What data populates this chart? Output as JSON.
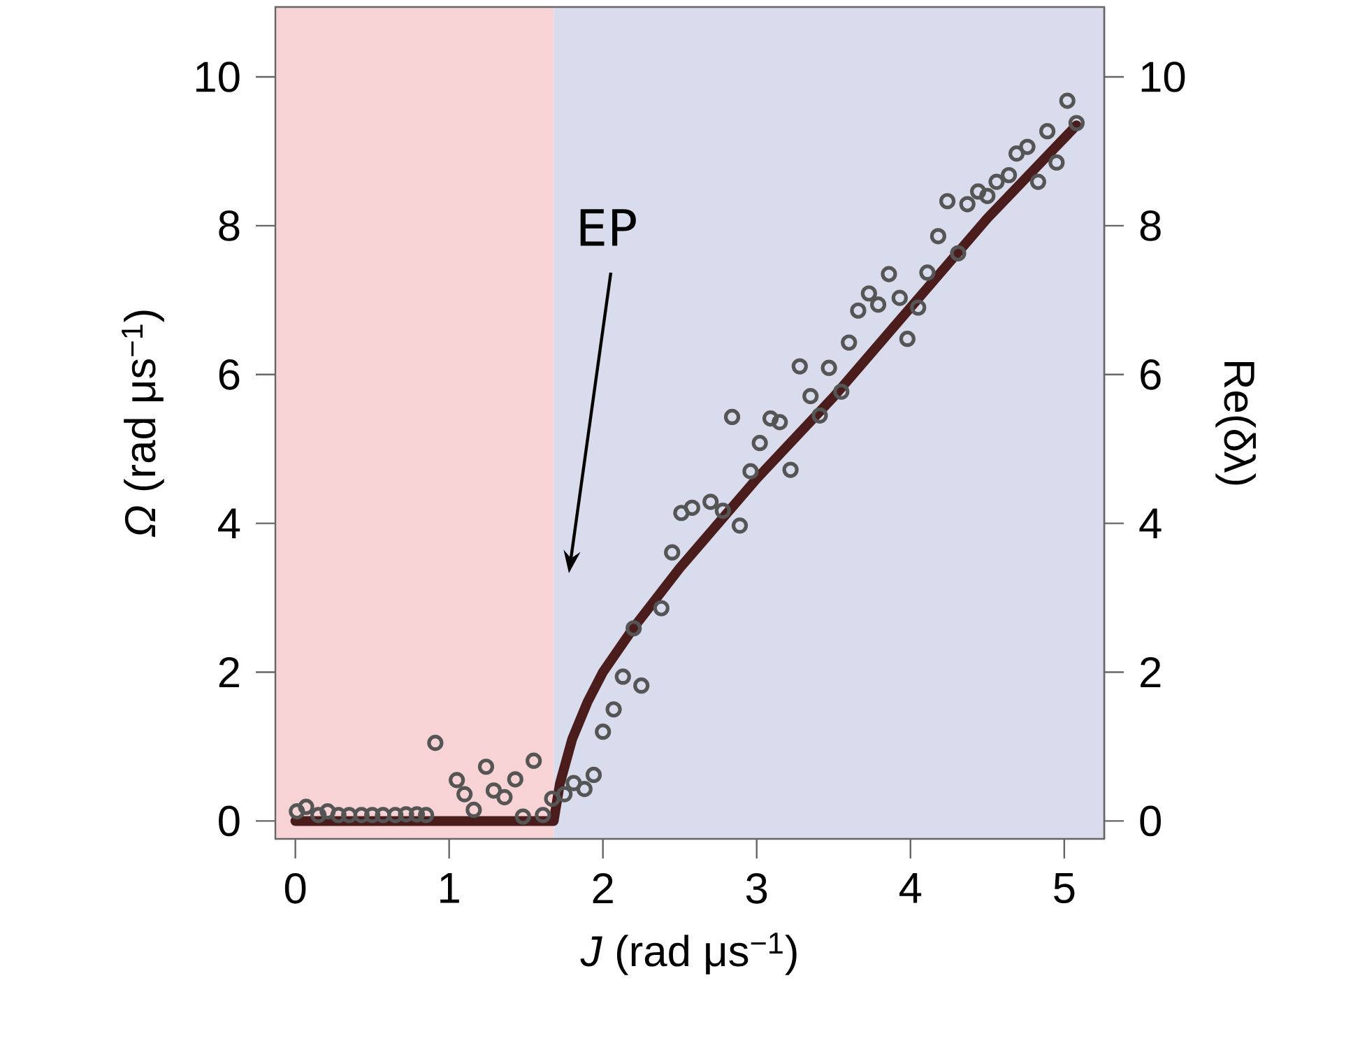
{
  "chart_data": {
    "type": "scatter",
    "xlabel": "*J* (rad μs$^{−1}$)",
    "ylabel": "*Ω* (rad μs$^{−1}$)",
    "y2label": "Re(δλ)",
    "xlim": [
      -0.13,
      5.26
    ],
    "ylim": [
      -0.24,
      10.94
    ],
    "y2lim": [
      -0.24,
      10.94
    ],
    "xticks": [
      0,
      1,
      2,
      3,
      4,
      5
    ],
    "yticks": [
      0,
      2,
      4,
      6,
      8,
      10
    ],
    "y2ticks": [
      0,
      2,
      4,
      6,
      8,
      10
    ],
    "bands": [
      {
        "axis": "x",
        "from": -0.13,
        "to": 1.68,
        "color": "#f8d3d5"
      },
      {
        "axis": "x",
        "from": 1.68,
        "to": 5.26,
        "color": "#d9dcec"
      }
    ],
    "annotations": [
      "EP"
    ],
    "series": [
      {
        "marker": "circle",
        "color": "#555555",
        "x": [
          0.01,
          0.07,
          0.15,
          0.21,
          0.28,
          0.35,
          0.43,
          0.5,
          0.57,
          0.65,
          0.72,
          0.79,
          0.85,
          0.91,
          1.05,
          1.1,
          1.16,
          1.24,
          1.29,
          1.36,
          1.43,
          1.48,
          1.55,
          1.61,
          1.67,
          1.75,
          1.81,
          1.88,
          1.94,
          2.0,
          2.07,
          2.13,
          2.2,
          2.25,
          2.38,
          2.45,
          2.51,
          2.58,
          2.7,
          2.78,
          2.89,
          2.84,
          2.96,
          3.02,
          3.09,
          3.15,
          3.22,
          3.28,
          3.35,
          3.41,
          3.47,
          3.55,
          3.6,
          3.66,
          3.73,
          3.79,
          3.86,
          3.93,
          3.98,
          4.05,
          4.11,
          4.18,
          4.24,
          4.31,
          4.37,
          4.44,
          4.5,
          4.56,
          4.64,
          4.69,
          4.76,
          4.83,
          4.89,
          4.95,
          5.02,
          5.08
        ],
        "values": [
          0.13,
          0.19,
          0.08,
          0.13,
          0.08,
          0.08,
          0.08,
          0.08,
          0.08,
          0.08,
          0.09,
          0.09,
          0.08,
          1.05,
          0.55,
          0.36,
          0.15,
          0.73,
          0.41,
          0.32,
          0.56,
          0.06,
          0.81,
          0.08,
          0.3,
          0.36,
          0.51,
          0.43,
          0.62,
          1.2,
          1.5,
          1.94,
          2.59,
          1.82,
          2.86,
          3.61,
          4.14,
          4.21,
          4.29,
          4.17,
          3.97,
          5.43,
          4.7,
          5.08,
          5.41,
          5.36,
          4.72,
          6.11,
          5.71,
          5.45,
          6.09,
          5.77,
          6.43,
          6.86,
          7.09,
          6.94,
          7.35,
          7.03,
          6.48,
          6.9,
          7.37,
          7.86,
          8.33,
          7.63,
          8.29,
          8.46,
          8.4,
          8.59,
          8.68,
          8.97,
          9.06,
          8.59,
          9.27,
          8.85,
          9.68,
          9.38
        ]
      },
      {
        "type": "line",
        "marker": "none",
        "color": "#4a1c1c",
        "x": [
          0,
          1.68,
          1.72,
          1.8,
          1.9,
          2.0,
          2.2,
          2.5,
          3.0,
          3.5,
          4.0,
          4.5,
          5.08
        ],
        "values": [
          0,
          0,
          0.5,
          1.1,
          1.6,
          2.0,
          2.6,
          3.4,
          4.6,
          5.7,
          6.9,
          8.1,
          9.35
        ]
      }
    ]
  }
}
